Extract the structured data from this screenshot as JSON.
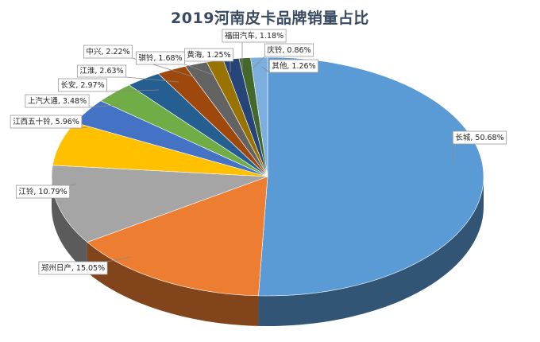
{
  "chart_data": {
    "type": "pie",
    "title": "2019河南皮卡品牌销量占比",
    "legend": "none",
    "unit": "%",
    "slices": [
      {
        "name": "长城",
        "value": 50.68,
        "label": "长城, 50.68%",
        "color": "#5b9bd5"
      },
      {
        "name": "郑州日产",
        "value": 15.05,
        "label": "郑州日产, 15.05%",
        "color": "#ed7d31"
      },
      {
        "name": "江铃",
        "value": 10.79,
        "label": "江铃, 10.79%",
        "color": "#a5a5a5"
      },
      {
        "name": "江西五十铃",
        "value": 5.96,
        "label": "江西五十铃, 5.96%",
        "color": "#ffc000"
      },
      {
        "name": "上汽大通",
        "value": 3.48,
        "label": "上汽大通, 3.48%",
        "color": "#4472c4"
      },
      {
        "name": "长安",
        "value": 2.97,
        "label": "长安, 2.97%",
        "color": "#70ad47"
      },
      {
        "name": "江淮",
        "value": 2.63,
        "label": "江淮, 2.63%",
        "color": "#255e91"
      },
      {
        "name": "中兴",
        "value": 2.22,
        "label": "中兴, 2.22%",
        "color": "#9e480e"
      },
      {
        "name": "骐铃",
        "value": 1.68,
        "label": "骐铃, 1.68%",
        "color": "#636363"
      },
      {
        "name": "黄海",
        "value": 1.25,
        "label": "黄海, 1.25%",
        "color": "#997300"
      },
      {
        "name": "福田汽车",
        "value": 1.18,
        "label": "福田汽车, 1.18%",
        "color": "#264478"
      },
      {
        "name": "庆铃",
        "value": 0.86,
        "label": "庆铃, 0.86%",
        "color": "#43682b"
      },
      {
        "name": "其他",
        "value": 1.26,
        "label": "其他, 1.26%",
        "color": "#7cafdd"
      }
    ]
  }
}
